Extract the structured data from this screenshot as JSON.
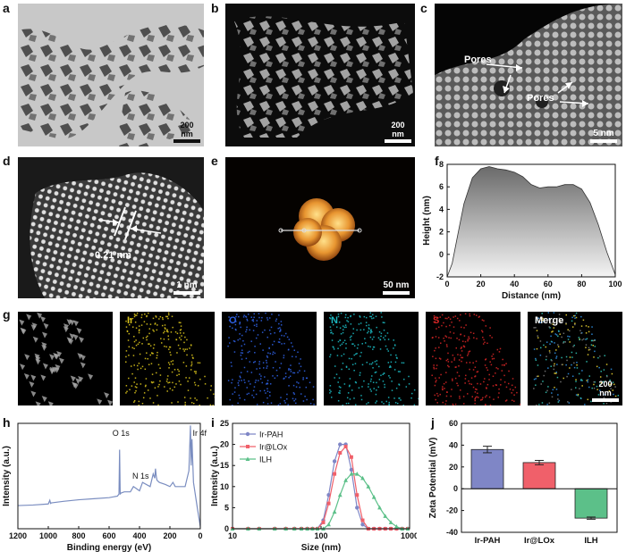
{
  "panels": {
    "a": {
      "label": "a",
      "scale": "200 nm"
    },
    "b": {
      "label": "b",
      "scale": "200 nm"
    },
    "c": {
      "label": "c",
      "scale": "5 nm",
      "annotations": [
        "Pores",
        "Pores"
      ]
    },
    "d": {
      "label": "d",
      "scale": "1 nm",
      "annotation": "0.21 nm"
    },
    "e": {
      "label": "e",
      "scale": "50 nm"
    },
    "f": {
      "label": "f"
    },
    "g": {
      "label": "g",
      "maps": [
        "",
        "Ir",
        "O",
        "N",
        "S",
        "Merge"
      ],
      "scale": "200 nm"
    },
    "h": {
      "label": "h"
    },
    "i": {
      "label": "i"
    },
    "j": {
      "label": "j"
    }
  },
  "colors": {
    "ir": "#d8c21b",
    "o": "#2d5fe0",
    "n": "#1bb8c0",
    "s": "#d22525",
    "afm_bright": "#f0b040",
    "afm_dark": "#b85a10",
    "xps": "#7a8dc0",
    "ir_pah": "#7f86c6",
    "ir_lox": "#f0606a",
    "ilh": "#5cc089"
  },
  "chart_data": [
    {
      "type": "area",
      "panel": "f",
      "xlabel": "Distance (nm)",
      "ylabel": "Height (nm)",
      "xlim": [
        0,
        100
      ],
      "ylim": [
        -2,
        8
      ],
      "xticks": [
        0,
        20,
        40,
        60,
        80,
        100
      ],
      "yticks": [
        -2,
        0,
        2,
        4,
        6,
        8
      ],
      "x": [
        0,
        3,
        6,
        10,
        15,
        20,
        25,
        30,
        35,
        40,
        45,
        50,
        55,
        60,
        65,
        70,
        75,
        80,
        85,
        90,
        95,
        100
      ],
      "y": [
        -2,
        -0.8,
        1.5,
        4.5,
        6.8,
        7.6,
        7.8,
        7.6,
        7.5,
        7.3,
        6.9,
        6.2,
        5.9,
        6.0,
        6.0,
        6.2,
        6.2,
        5.8,
        4.6,
        2.6,
        0.2,
        -1.8
      ]
    },
    {
      "type": "line",
      "panel": "h",
      "xlabel": "Binding energy (eV)",
      "ylabel": "Intensity (a.u.)",
      "xlim": [
        1200,
        0
      ],
      "xticks": [
        1200,
        1000,
        800,
        600,
        400,
        200,
        0
      ],
      "annotations": [
        {
          "text": "O 1s",
          "x": 531
        },
        {
          "text": "N 1s",
          "x": 400
        },
        {
          "text": "Ir 4f",
          "x": 62
        }
      ],
      "x": [
        1200,
        1100,
        1000,
        990,
        985,
        980,
        900,
        800,
        700,
        600,
        545,
        535,
        531,
        527,
        520,
        500,
        460,
        440,
        400,
        380,
        330,
        310,
        300,
        295,
        290,
        285,
        270,
        230,
        200,
        180,
        165,
        150,
        100,
        75,
        65,
        60,
        55,
        45,
        20,
        0
      ],
      "y": [
        22,
        22.5,
        23.5,
        27,
        24,
        24.5,
        26,
        27.5,
        28.5,
        29.5,
        31,
        33,
        75,
        33,
        34,
        35,
        35,
        40,
        36,
        44,
        40,
        52,
        48,
        57,
        50,
        46,
        44,
        42,
        40,
        44,
        40,
        40,
        40,
        55,
        98,
        60,
        85,
        44,
        20,
        2
      ]
    },
    {
      "type": "line",
      "panel": "i",
      "xlabel": "Size (nm)",
      "ylabel": "Intensity (a.u.)",
      "xscale": "log",
      "xlim": [
        10,
        1000
      ],
      "ylim": [
        0,
        25
      ],
      "xticks": [
        10,
        100,
        1000
      ],
      "yticks": [
        0,
        5,
        10,
        15,
        20,
        25
      ],
      "legend": "top-left",
      "x": [
        10,
        15,
        20,
        30,
        40,
        50,
        60,
        70,
        80,
        91,
        106,
        122,
        142,
        164,
        190,
        220,
        255,
        295,
        342,
        396,
        459,
        531,
        615,
        712,
        825,
        955
      ],
      "series": [
        {
          "name": "Ir-PAH",
          "values": [
            0,
            0,
            0,
            0,
            0,
            0,
            0,
            0,
            0,
            0,
            2,
            8,
            16,
            20,
            20,
            14,
            5,
            1,
            0,
            0,
            0,
            0,
            0,
            0,
            0,
            0
          ]
        },
        {
          "name": "Ir@LOx",
          "values": [
            0,
            0,
            0,
            0,
            0,
            0,
            0,
            0,
            0,
            0,
            1.5,
            6,
            13,
            18,
            19.5,
            17,
            8,
            2,
            0,
            0,
            0,
            0,
            0,
            0,
            0,
            0
          ]
        },
        {
          "name": "ILH",
          "values": [
            0,
            0,
            0,
            0,
            0,
            0,
            0,
            0,
            0,
            0,
            0,
            1,
            4,
            8,
            11.5,
            13,
            13,
            12,
            10,
            7.5,
            5,
            3,
            1.5,
            0.5,
            0,
            0
          ]
        }
      ]
    },
    {
      "type": "bar",
      "panel": "j",
      "ylabel": "Zeta Potential (mV)",
      "ylim": [
        -40,
        60
      ],
      "yticks": [
        -40,
        -20,
        0,
        20,
        40,
        60
      ],
      "categories": [
        "Ir-PAH",
        "Ir@LOx",
        "ILH"
      ],
      "values": [
        36,
        24,
        -27
      ],
      "errors": [
        3,
        2,
        1
      ]
    }
  ]
}
